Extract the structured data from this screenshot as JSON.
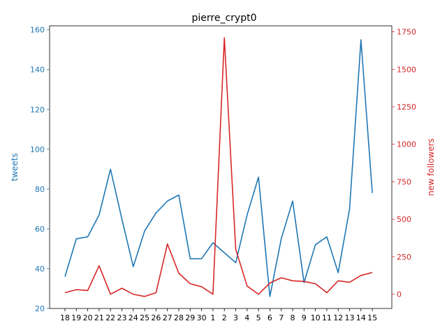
{
  "chart_data": {
    "type": "line",
    "title": "pierre_crypt0",
    "xlabel": "",
    "categories": [
      "18",
      "19",
      "20",
      "21",
      "22",
      "23",
      "24",
      "25",
      "26",
      "27",
      "28",
      "29",
      "30",
      "1",
      "2",
      "3",
      "4",
      "5",
      "6",
      "7",
      "8",
      "9",
      "10",
      "11",
      "12",
      "13",
      "14",
      "15"
    ],
    "y_left": {
      "label": "tweets",
      "lim": [
        20,
        162
      ],
      "ticks": [
        20,
        40,
        60,
        80,
        100,
        120,
        140,
        160
      ],
      "color": "#1f77b4"
    },
    "y_right": {
      "label": "new followers",
      "lim": [
        -95,
        1790
      ],
      "ticks": [
        0,
        250,
        500,
        750,
        1000,
        1250,
        1500,
        1750
      ],
      "color": "#d62728"
    },
    "series": [
      {
        "axis": "left",
        "color": "#1f77b4",
        "values": [
          36,
          55,
          56,
          67,
          90,
          65,
          41,
          59,
          68,
          74,
          77,
          45,
          45,
          53,
          48,
          43,
          67,
          86,
          26,
          55,
          74,
          33,
          52,
          56,
          38,
          70,
          155,
          78
        ]
      },
      {
        "axis": "right",
        "color": "#d62728",
        "values": [
          10,
          30,
          25,
          190,
          0,
          40,
          0,
          -15,
          10,
          335,
          140,
          70,
          50,
          0,
          1710,
          300,
          55,
          0,
          75,
          110,
          90,
          85,
          70,
          10,
          90,
          80,
          125,
          145
        ]
      }
    ],
    "grid": false,
    "legend": "none"
  }
}
